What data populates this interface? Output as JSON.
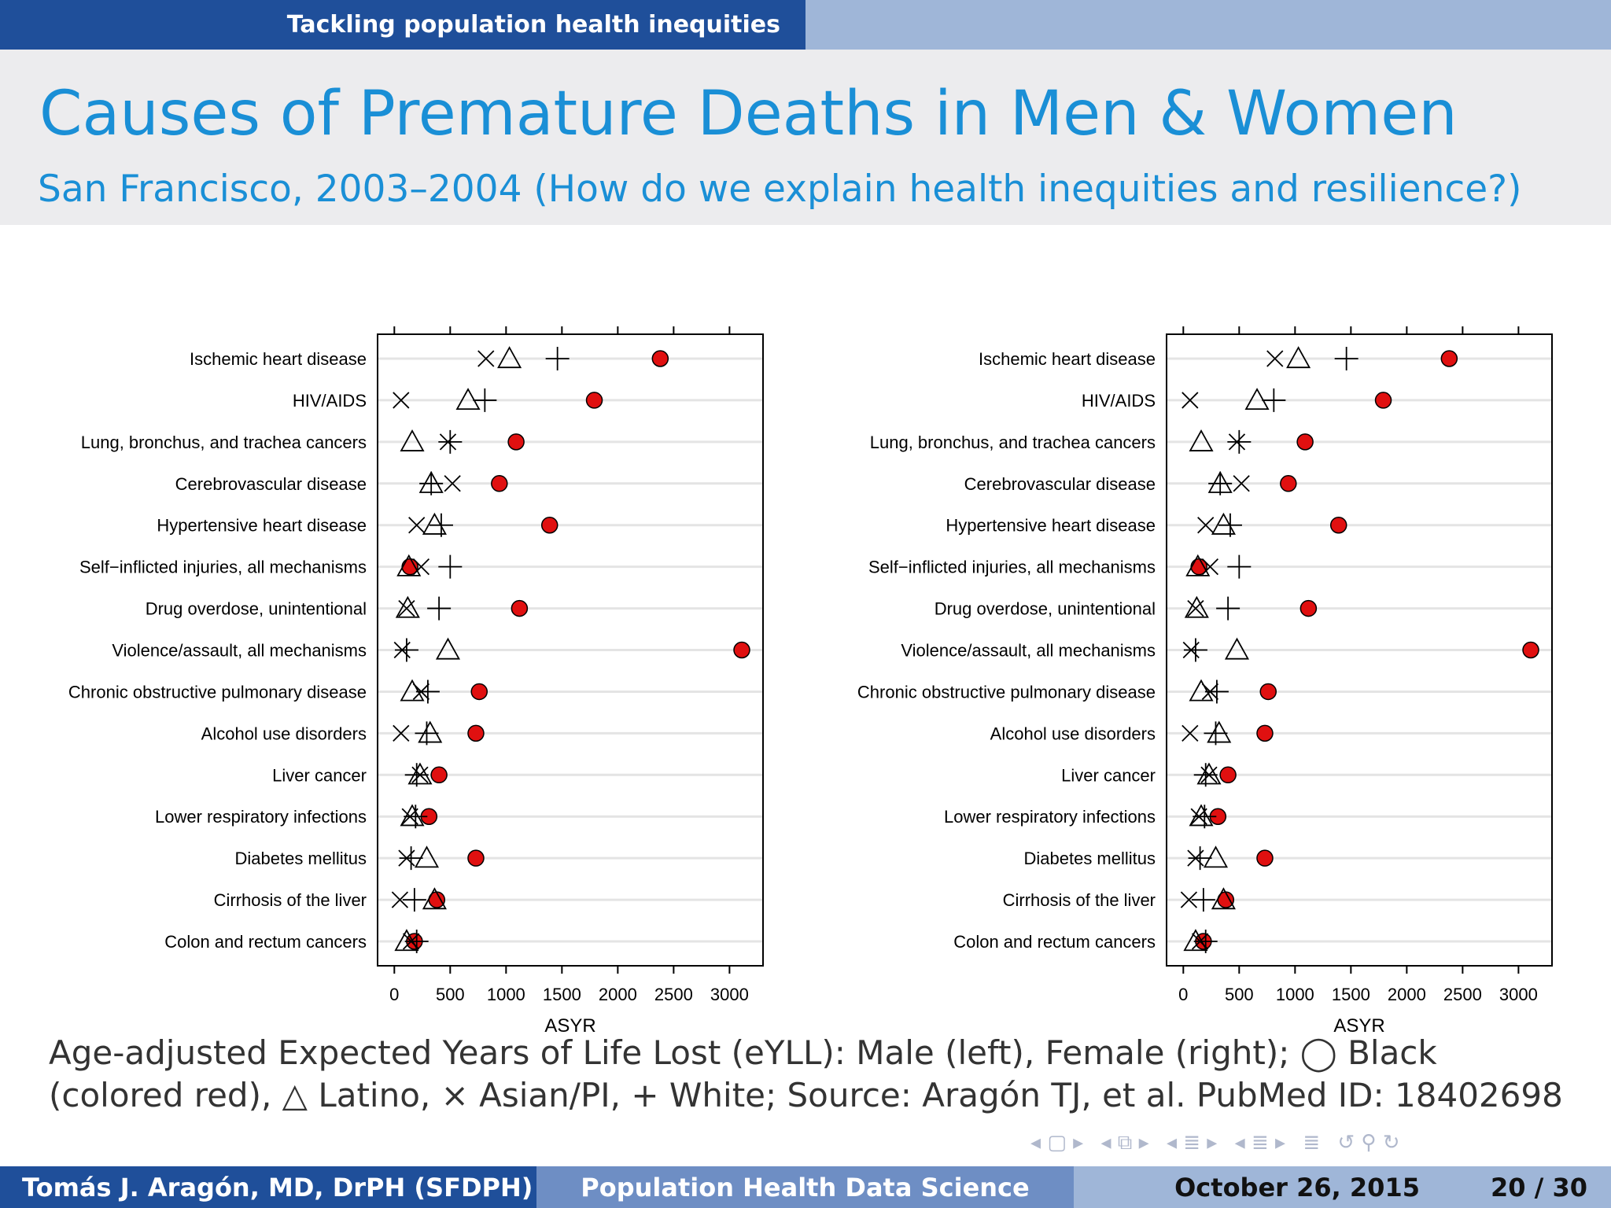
{
  "header": {
    "section": "Tackling population health inequities"
  },
  "slide": {
    "title": "Causes of Premature Deaths in Men & Women",
    "subtitle": "San Francisco, 2003–2004 (How do we explain health inequities and resilience?)",
    "caption": "Age-adjusted Expected Years of Life Lost (eYLL): Male (left), Female (right); ◯ Black (colored red), △ Latino, × Asian/PI, + White; Source: Aragón TJ, et al. PubMed ID: 18402698"
  },
  "footer": {
    "author": "Tomás J. Aragón, MD, DrPH (SFDPH)",
    "course": "Population Health Data Science",
    "date": "October 26, 2015",
    "page": "20 / 30"
  },
  "nav_icons": [
    "nav-frame-icon",
    "nav-subsection-icon",
    "nav-section-icon",
    "nav-section-icon-2",
    "nav-list-icon",
    "nav-search-icon"
  ],
  "colors": {
    "black_marker": "#e01010",
    "title": "#1a8fd6",
    "header_dark": "#1f4f9a",
    "header_light": "#9fb6d8"
  },
  "chart_data": [
    {
      "type": "scatter",
      "panel": "Male (left)",
      "xlabel": "ASYR",
      "xlim": [
        -150,
        3300
      ],
      "xticks": [
        0,
        500,
        1000,
        1500,
        2000,
        2500,
        3000
      ],
      "grid": true,
      "categories": [
        "Ischemic heart disease",
        "HIV/AIDS",
        "Lung, bronchus, and trachea cancers",
        "Cerebrovascular disease",
        "Hypertensive heart disease",
        "Self−inflicted injuries, all mechanisms",
        "Drug overdose, unintentional",
        "Violence/assault, all mechanisms",
        "Chronic obstructive pulmonary disease",
        "Alcohol use disorders",
        "Liver cancer",
        "Lower respiratory infections",
        "Diabetes mellitus",
        "Cirrhosis of the liver",
        "Colon and rectum cancers"
      ],
      "series": [
        {
          "name": "Black",
          "marker": "circle",
          "values": [
            2380,
            1790,
            1090,
            940,
            1390,
            140,
            1120,
            3110,
            760,
            730,
            400,
            310,
            730,
            380,
            180
          ]
        },
        {
          "name": "Latino",
          "marker": "triangle",
          "values": [
            1030,
            660,
            160,
            330,
            360,
            130,
            120,
            480,
            160,
            320,
            230,
            160,
            290,
            360,
            110
          ]
        },
        {
          "name": "Asian/PI",
          "marker": "x",
          "values": [
            820,
            60,
            480,
            520,
            200,
            240,
            110,
            70,
            240,
            60,
            230,
            140,
            110,
            50,
            150
          ]
        },
        {
          "name": "White",
          "marker": "plus",
          "values": [
            1460,
            810,
            500,
            330,
            420,
            500,
            400,
            110,
            300,
            290,
            200,
            190,
            150,
            180,
            200
          ]
        }
      ]
    },
    {
      "type": "scatter",
      "panel": "Female (right)",
      "xlabel": "ASYR",
      "xlim": [
        -150,
        3300
      ],
      "xticks": [
        0,
        500,
        1000,
        1500,
        2000,
        2500,
        3000
      ],
      "grid": true,
      "categories": [
        "Ischemic heart disease",
        "HIV/AIDS",
        "Lung, bronchus, and trachea cancers",
        "Cerebrovascular disease",
        "Hypertensive heart disease",
        "Self−inflicted injuries, all mechanisms",
        "Drug overdose, unintentional",
        "Violence/assault, all mechanisms",
        "Chronic obstructive pulmonary disease",
        "Alcohol use disorders",
        "Liver cancer",
        "Lower respiratory infections",
        "Diabetes mellitus",
        "Cirrhosis of the liver",
        "Colon and rectum cancers"
      ],
      "series": [
        {
          "name": "Black",
          "marker": "circle",
          "values": [
            2380,
            1790,
            1090,
            940,
            1390,
            140,
            1120,
            3110,
            760,
            730,
            400,
            310,
            730,
            380,
            180
          ]
        },
        {
          "name": "Latino",
          "marker": "triangle",
          "values": [
            1030,
            660,
            160,
            330,
            360,
            130,
            120,
            480,
            160,
            320,
            230,
            160,
            290,
            360,
            110
          ]
        },
        {
          "name": "Asian/PI",
          "marker": "x",
          "values": [
            820,
            60,
            480,
            520,
            200,
            240,
            110,
            70,
            240,
            60,
            230,
            140,
            110,
            50,
            150
          ]
        },
        {
          "name": "White",
          "marker": "plus",
          "values": [
            1460,
            810,
            500,
            330,
            420,
            500,
            400,
            110,
            300,
            290,
            200,
            190,
            150,
            180,
            200
          ]
        }
      ]
    }
  ]
}
